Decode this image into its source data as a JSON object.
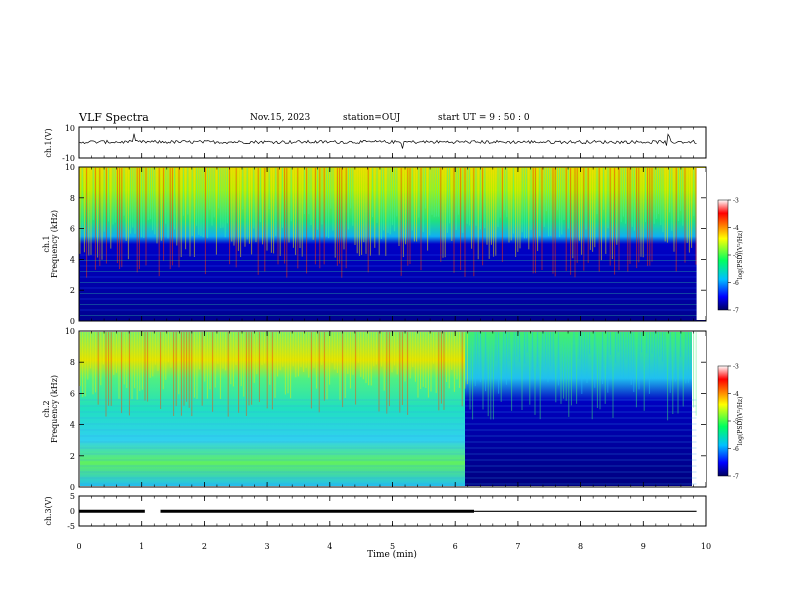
{
  "header": {
    "title": "VLF Spectra",
    "date": "Nov.15, 2023",
    "station": "station=OUJ",
    "start_ut": "start UT = 9 : 50 : 0"
  },
  "chart_data": [
    {
      "type": "line",
      "panel": "ch1-waveform",
      "ylabel": "ch.1(V)",
      "ylim": [
        -10,
        10
      ],
      "y_ticklabels": [
        "10",
        "-10"
      ],
      "xlim": [
        0,
        10
      ],
      "description_level": 0.0
    },
    {
      "type": "heatmap",
      "panel": "ch1-spectrogram",
      "ylabel": "ch.1\nFrequency (kHz)",
      "ylim": [
        0,
        10
      ],
      "y_ticks": [
        0,
        2,
        4,
        6,
        8,
        10
      ],
      "xlim": [
        0,
        10
      ],
      "colorbar": {
        "label": "log(PSD)(V²/Hz)",
        "range": [
          -7,
          -3
        ],
        "ticks": [
          -3,
          -4,
          -5,
          -6,
          -7
        ]
      },
      "colors": {
        "high": "#ff0000",
        "mid": "#00ff80",
        "low": "#000080"
      }
    },
    {
      "type": "heatmap",
      "panel": "ch2-spectrogram",
      "ylabel": "ch.2\nFrequency (kHz)",
      "ylim": [
        0,
        10
      ],
      "y_ticks": [
        0,
        2,
        4,
        6,
        8,
        10
      ],
      "xlim": [
        0,
        10
      ],
      "transition_min": 6.2,
      "colorbar": {
        "label": "log(PSD)(V²/Hz)",
        "range": [
          -7,
          -3
        ],
        "ticks": [
          -3,
          -4,
          -5,
          -6,
          -7
        ]
      }
    },
    {
      "type": "line",
      "panel": "ch3-level",
      "ylabel": "ch.3(V)",
      "ylim": [
        -5,
        5
      ],
      "y_ticks": [
        5,
        0,
        -5
      ],
      "xlim": [
        0,
        10
      ],
      "segments": [
        {
          "x": [
            0,
            1.05
          ],
          "y": -0.1
        },
        {
          "x": [
            1.3,
            6.3
          ],
          "y": -0.1
        },
        {
          "x": [
            6.3,
            9.85
          ],
          "y": -0.1
        }
      ]
    }
  ],
  "x_axis": {
    "label": "Time (min)",
    "ticks": [
      "0",
      "1",
      "2",
      "3",
      "4",
      "5",
      "6",
      "7",
      "8",
      "9",
      "10"
    ]
  }
}
